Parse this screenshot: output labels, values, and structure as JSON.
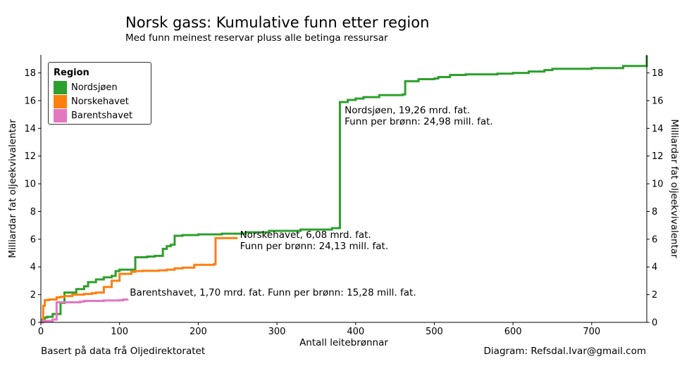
{
  "page": {
    "title": "Norsk gass: Kumulative funn etter region",
    "subtitle": "Med funn meinest reservar pluss alle betinga ressursar",
    "footer_left": "Basert på data frå Oljedirektoratet",
    "footer_right": "Diagram: Refsdal.Ivar@gmail.com"
  },
  "chart_data": {
    "type": "line",
    "step": true,
    "xlabel": "Antall leitebrønnar",
    "ylabel": "Milliardar fat oljeekvivalentar",
    "ylabel_right": "Milliardar fat oljeekvivalentar",
    "xlim": [
      0,
      770
    ],
    "ylim": [
      0,
      19.3
    ],
    "xticks": [
      0,
      100,
      200,
      300,
      400,
      500,
      600,
      700
    ],
    "yticks": [
      0,
      2,
      4,
      6,
      8,
      10,
      12,
      14,
      16,
      18
    ],
    "legend": {
      "title": "Region",
      "position": "top-left",
      "entries": [
        "Nordsjøen",
        "Norskehavet",
        "Barentshavet"
      ]
    },
    "series": [
      {
        "name": "Nordsjøen",
        "color": "#2ca02c",
        "x": [
          0,
          2,
          5,
          8,
          15,
          25,
          30,
          45,
          55,
          60,
          70,
          80,
          90,
          95,
          100,
          120,
          135,
          145,
          155,
          160,
          165,
          170,
          180,
          200,
          230,
          260,
          290,
          330,
          370,
          378,
          380,
          390,
          400,
          410,
          430,
          460,
          463,
          480,
          500,
          505,
          520,
          540,
          580,
          600,
          620,
          640,
          650,
          700,
          740,
          770
        ],
        "y": [
          0,
          0.2,
          0.35,
          0.4,
          0.6,
          1.4,
          2.15,
          2.4,
          2.6,
          2.9,
          3.1,
          3.25,
          3.35,
          3.7,
          3.8,
          4.7,
          4.75,
          4.8,
          5.3,
          5.5,
          5.6,
          6.25,
          6.3,
          6.35,
          6.4,
          6.5,
          6.6,
          6.7,
          6.8,
          6.8,
          15.9,
          16.05,
          16.15,
          16.25,
          16.4,
          16.45,
          17.4,
          17.55,
          17.6,
          17.7,
          17.85,
          17.9,
          17.95,
          18.0,
          18.1,
          18.2,
          18.3,
          18.35,
          18.5,
          19.26
        ]
      },
      {
        "name": "Norskehavet",
        "color": "#ff7f0e",
        "x": [
          0,
          3,
          5,
          10,
          18,
          20,
          25,
          30,
          40,
          55,
          65,
          70,
          80,
          90,
          100,
          110,
          115,
          120,
          130,
          150,
          160,
          170,
          180,
          195,
          220,
          222,
          250
        ],
        "y": [
          0,
          1.2,
          1.6,
          1.65,
          1.65,
          1.8,
          1.85,
          1.9,
          2.0,
          2.05,
          2.1,
          2.15,
          2.55,
          3.0,
          3.5,
          3.5,
          3.65,
          3.7,
          3.72,
          3.75,
          3.8,
          3.9,
          3.95,
          4.15,
          4.2,
          6.08,
          6.08
        ]
      },
      {
        "name": "Barentshavet",
        "color": "#e377c2",
        "x": [
          0,
          3,
          10,
          15,
          20,
          30,
          50,
          55,
          80,
          100,
          105,
          110
        ],
        "y": [
          0,
          0.1,
          0.1,
          0.2,
          1.45,
          1.45,
          1.5,
          1.55,
          1.58,
          1.6,
          1.65,
          1.7
        ]
      }
    ],
    "annotations": [
      {
        "series": "Nordsjøen",
        "text": "Nordsjøen, 19,26 mrd. fat.\nFunn per brønn: 24,98 mill. fat.",
        "x": 386,
        "y": 14.9
      },
      {
        "series": "Norskehavet",
        "text": "Norskehavet, 6,08 mrd. fat.\nFunn per brønn: 24,13 mill. fat.",
        "x": 253,
        "y": 5.9
      },
      {
        "series": "Barentshavet",
        "text": "Barentshavet, 1,70 mrd. fat. Funn per brønn: 15,28 mill. fat.",
        "x": 113,
        "y": 1.75
      }
    ]
  }
}
